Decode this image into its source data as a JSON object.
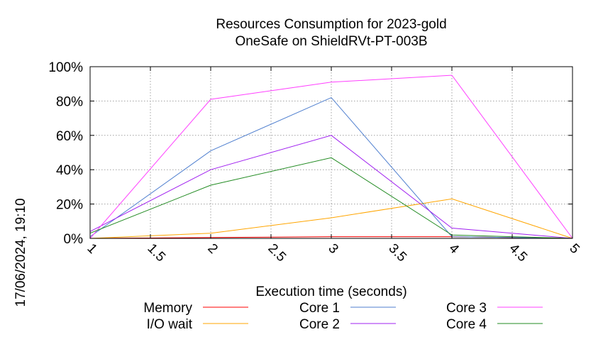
{
  "chart_data": {
    "type": "line",
    "title_lines": [
      "Resources Consumption for 2023-gold",
      "OneSafe on ShieldRVt-PT-003B"
    ],
    "xlabel": "Execution time (seconds)",
    "ylabel": "",
    "side_label": "17/06/2024, 19:10",
    "xlim": [
      1,
      5
    ],
    "ylim": [
      0,
      100
    ],
    "x_ticks": [
      1,
      1.5,
      2,
      2.5,
      3,
      3.5,
      4,
      4.5,
      5
    ],
    "x_tick_labels": [
      "1",
      "1.5",
      "2",
      "2.5",
      "3",
      "3.5",
      "4",
      "4.5",
      "5"
    ],
    "y_ticks": [
      0,
      20,
      40,
      60,
      80,
      100
    ],
    "y_tick_labels": [
      "0%",
      "20%",
      "40%",
      "60%",
      "80%",
      "100%"
    ],
    "grid": true,
    "legend_position": "bottom",
    "series": [
      {
        "name": "Memory",
        "color": "#ff0000",
        "x": [
          1,
          2,
          3,
          4,
          5
        ],
        "y": [
          0,
          0.5,
          1,
          1,
          0
        ]
      },
      {
        "name": "I/O wait",
        "color": "#ffa500",
        "x": [
          1,
          2,
          3,
          4,
          5
        ],
        "y": [
          0,
          3,
          12,
          23,
          0
        ]
      },
      {
        "name": "Core 1",
        "color": "#4f7fcf",
        "x": [
          1,
          2,
          3,
          4,
          5
        ],
        "y": [
          1,
          51,
          82,
          1,
          0
        ]
      },
      {
        "name": "Core 2",
        "color": "#a020f0",
        "x": [
          1,
          2,
          3,
          4,
          5
        ],
        "y": [
          4,
          40,
          60,
          6,
          0
        ]
      },
      {
        "name": "Core 3",
        "color": "#ff40ff",
        "x": [
          1,
          2,
          3,
          4,
          5
        ],
        "y": [
          0,
          81,
          91,
          95,
          0
        ]
      },
      {
        "name": "Core 4",
        "color": "#228b22",
        "x": [
          1,
          2,
          3,
          4,
          5
        ],
        "y": [
          3,
          31,
          47,
          2,
          0
        ]
      }
    ]
  }
}
